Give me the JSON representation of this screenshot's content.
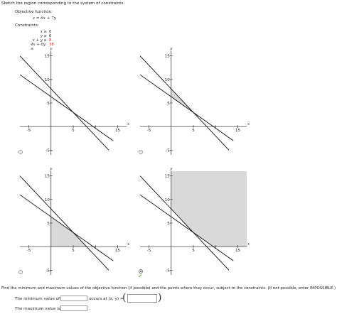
{
  "instruction": "Sketch the region corresponding to the system of constraints.",
  "objective": {
    "label": "Objective function:",
    "lhs": "z",
    "rhs": "= 6x + 7y"
  },
  "constraints": {
    "label": "Constraints:",
    "rows": [
      {
        "lhs": "x ≥",
        "rhs": "0",
        "rhs_color": "#222222"
      },
      {
        "lhs": "y ≥",
        "rhs": "0",
        "rhs_color": "#222222"
      },
      {
        "lhs": "x +   y ≥",
        "rhs": "8",
        "rhs_color": "#d42a1a"
      },
      {
        "lhs": "4x +  6y ≥",
        "rhs": "38",
        "rhs_color": "#d42a1a"
      }
    ]
  },
  "graphs": [
    {
      "id": "a",
      "ticks": {
        "x_neg": "-5",
        "x5": "5",
        "x15": "15",
        "y15": "15",
        "y10": "10",
        "y5": "5",
        "y_neg": "-5"
      },
      "axis_x": "x",
      "axis_y": "y",
      "shading": "none",
      "selected": false
    },
    {
      "id": "b",
      "ticks": {
        "x_neg": "-5",
        "x5": "5",
        "x15": "15",
        "y15": "15",
        "y10": "10",
        "y5": "5",
        "y_neg": "-5"
      },
      "axis_x": "x",
      "axis_y": "y",
      "shading": "upper-triangle",
      "selected": false
    },
    {
      "id": "c",
      "ticks": {
        "x_neg": "-5",
        "x5": "5",
        "x15": "15",
        "y15": "15",
        "y10": "10",
        "y5": "5",
        "y_neg": "-5"
      },
      "axis_x": "x",
      "axis_y": "y",
      "shading": "lower-quad",
      "selected": false
    },
    {
      "id": "d",
      "ticks": {
        "x_neg": "-5",
        "x5": "5",
        "x15": "15",
        "y15": "15",
        "y10": "10",
        "y5": "5",
        "y_neg": "-5"
      },
      "axis_x": "x",
      "axis_y": "y",
      "shading": "unbounded-upper",
      "selected": true,
      "marked_correct": true
    }
  ],
  "find_text": "Find the minimum and maximum values of the objective function (if possible) and the points where they occur, subject to the constraints. (If not possible, enter IMPOSSIBLE.)",
  "min_row": {
    "prefix": "The minimum value of",
    "value": "",
    "occurs": "occurs at (x, y) =",
    "point": "",
    "suffix": "."
  },
  "max_row": {
    "prefix": "The maximum value is",
    "value": "",
    "suffix": "."
  },
  "colors": {
    "shade": "#d9d9d9",
    "line": "#111111",
    "check": "#3aa63a",
    "red": "#d42a1a"
  }
}
